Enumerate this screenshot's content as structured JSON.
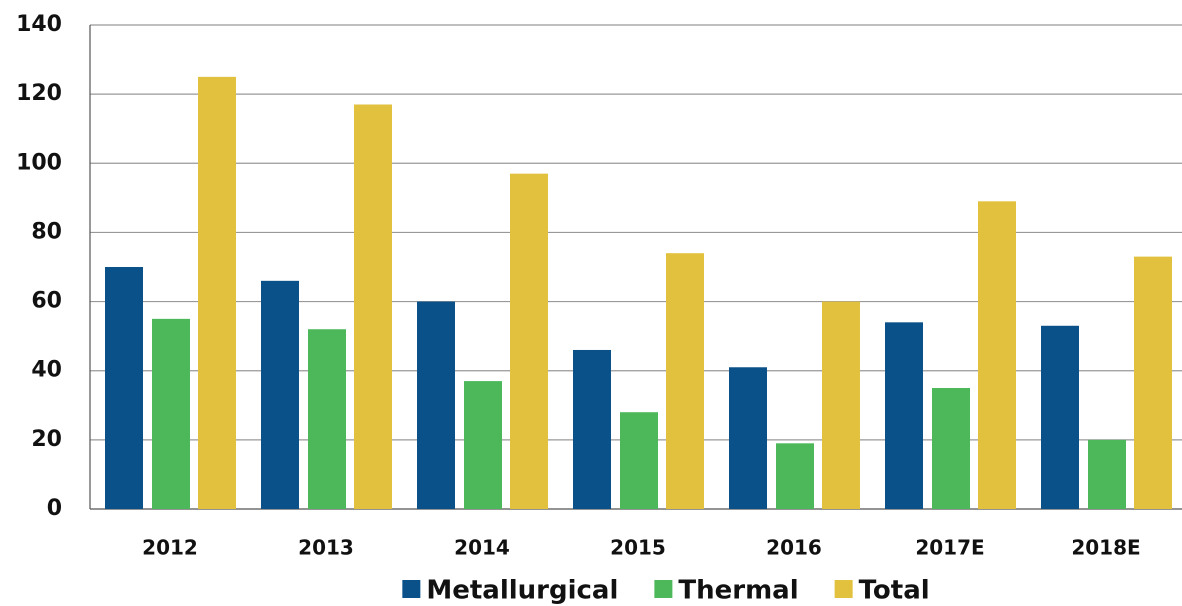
{
  "chart_data": {
    "type": "bar",
    "categories": [
      "2012",
      "2013",
      "2014",
      "2015",
      "2016",
      "2017E",
      "2018E"
    ],
    "series": [
      {
        "name": "Metallurgical",
        "color": "#0b5189",
        "values": [
          70,
          66,
          60,
          46,
          41,
          54,
          53
        ]
      },
      {
        "name": "Thermal",
        "color": "#4cb85a",
        "values": [
          55,
          52,
          37,
          28,
          19,
          35,
          20
        ]
      },
      {
        "name": "Total",
        "color": "#e2c13e",
        "values": [
          125,
          117,
          97,
          74,
          60,
          89,
          73
        ]
      }
    ],
    "ylim": [
      0,
      140
    ],
    "yticks": [
      0,
      20,
      40,
      60,
      80,
      100,
      120,
      140
    ],
    "grid": true,
    "legend": "bottom"
  }
}
